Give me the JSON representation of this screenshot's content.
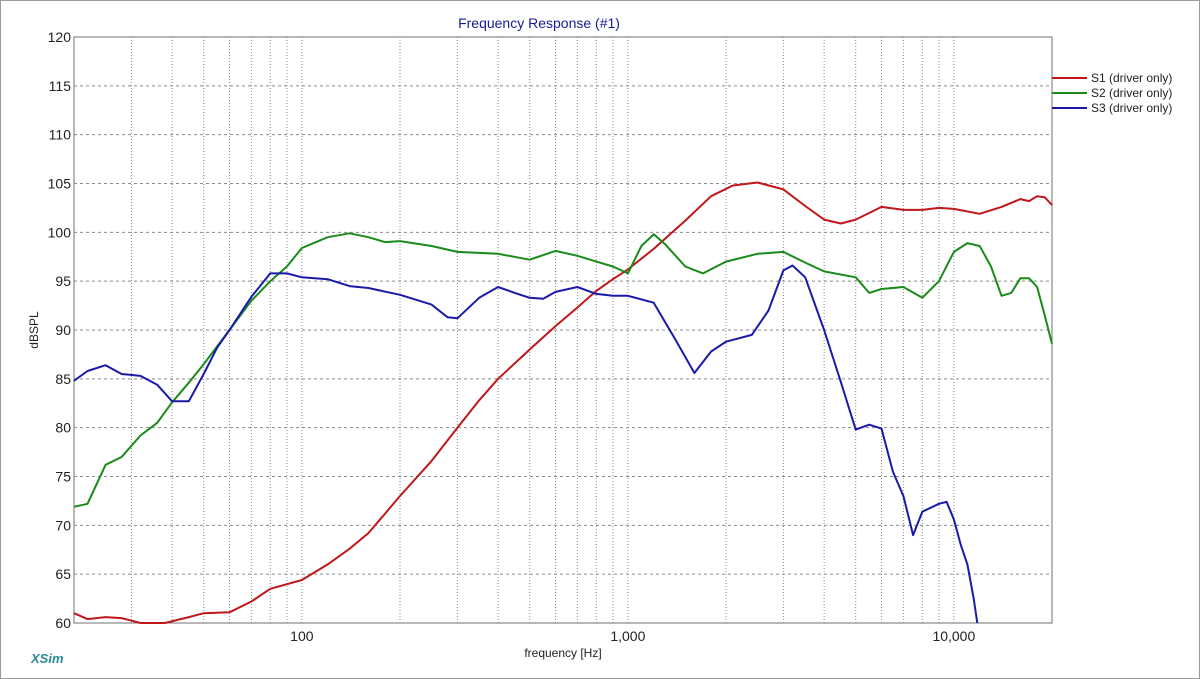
{
  "chart_data": {
    "type": "line",
    "title": "Frequency Response (#1)",
    "xlabel": "frequency [Hz]",
    "ylabel": "dBSPL",
    "xscale": "log",
    "xlim": [
      20,
      20000
    ],
    "ylim": [
      60,
      120
    ],
    "x_tick_labels": [
      {
        "value": 100,
        "label": "100"
      },
      {
        "value": 1000,
        "label": "1,000"
      },
      {
        "value": 10000,
        "label": "10,000"
      }
    ],
    "y_ticks": [
      60,
      65,
      70,
      75,
      80,
      85,
      90,
      95,
      100,
      105,
      110,
      115,
      120
    ],
    "grid": true,
    "legend_position": "top-right",
    "series": [
      {
        "name": "S1 (driver only)",
        "color": "#c0171b",
        "points": [
          [
            20,
            61
          ],
          [
            22,
            60.4
          ],
          [
            25,
            60.6
          ],
          [
            28,
            60.5
          ],
          [
            32,
            60
          ],
          [
            38,
            60
          ],
          [
            45,
            60.6
          ],
          [
            50,
            61
          ],
          [
            60,
            61.1
          ],
          [
            70,
            62.2
          ],
          [
            80,
            63.5
          ],
          [
            100,
            64.4
          ],
          [
            120,
            66
          ],
          [
            140,
            67.6
          ],
          [
            160,
            69.2
          ],
          [
            180,
            71.2
          ],
          [
            200,
            73
          ],
          [
            250,
            76.6
          ],
          [
            300,
            80
          ],
          [
            350,
            82.8
          ],
          [
            400,
            85
          ],
          [
            500,
            88
          ],
          [
            600,
            90.4
          ],
          [
            700,
            92.3
          ],
          [
            800,
            94
          ],
          [
            900,
            95.2
          ],
          [
            1000,
            96.2
          ],
          [
            1200,
            98.3
          ],
          [
            1500,
            101.2
          ],
          [
            1800,
            103.7
          ],
          [
            2100,
            104.8
          ],
          [
            2500,
            105.1
          ],
          [
            3000,
            104.4
          ],
          [
            3500,
            102.7
          ],
          [
            4000,
            101.3
          ],
          [
            4500,
            100.9
          ],
          [
            5000,
            101.3
          ],
          [
            6000,
            102.6
          ],
          [
            7000,
            102.3
          ],
          [
            8000,
            102.3
          ],
          [
            9000,
            102.5
          ],
          [
            10000,
            102.4
          ],
          [
            12000,
            101.9
          ],
          [
            14000,
            102.6
          ],
          [
            16000,
            103.4
          ],
          [
            17000,
            103.2
          ],
          [
            18000,
            103.7
          ],
          [
            19000,
            103.6
          ],
          [
            20000,
            102.8
          ]
        ]
      },
      {
        "name": "S2 (driver only)",
        "color": "#1a8a1a",
        "points": [
          [
            20,
            71.9
          ],
          [
            22,
            72.2
          ],
          [
            25,
            76.2
          ],
          [
            28,
            77
          ],
          [
            32,
            79.2
          ],
          [
            36,
            80.5
          ],
          [
            40,
            82.6
          ],
          [
            45,
            84.6
          ],
          [
            50,
            86.5
          ],
          [
            60,
            90
          ],
          [
            70,
            93
          ],
          [
            80,
            95
          ],
          [
            90,
            96.5
          ],
          [
            100,
            98.4
          ],
          [
            120,
            99.5
          ],
          [
            140,
            99.9
          ],
          [
            160,
            99.5
          ],
          [
            180,
            99
          ],
          [
            200,
            99.1
          ],
          [
            250,
            98.6
          ],
          [
            300,
            98
          ],
          [
            400,
            97.8
          ],
          [
            500,
            97.2
          ],
          [
            600,
            98.1
          ],
          [
            700,
            97.6
          ],
          [
            800,
            97
          ],
          [
            900,
            96.5
          ],
          [
            1000,
            95.8
          ],
          [
            1100,
            98.6
          ],
          [
            1200,
            99.8
          ],
          [
            1300,
            98.8
          ],
          [
            1500,
            96.5
          ],
          [
            1700,
            95.8
          ],
          [
            2000,
            97
          ],
          [
            2500,
            97.8
          ],
          [
            3000,
            98
          ],
          [
            3500,
            96.9
          ],
          [
            4000,
            96
          ],
          [
            5000,
            95.4
          ],
          [
            5500,
            93.8
          ],
          [
            6000,
            94.2
          ],
          [
            7000,
            94.4
          ],
          [
            8000,
            93.3
          ],
          [
            9000,
            95
          ],
          [
            10000,
            98
          ],
          [
            11000,
            98.9
          ],
          [
            12000,
            98.6
          ],
          [
            13000,
            96.5
          ],
          [
            14000,
            93.5
          ],
          [
            15000,
            93.8
          ],
          [
            16000,
            95.3
          ],
          [
            17000,
            95.3
          ],
          [
            18000,
            94.4
          ],
          [
            19000,
            91.5
          ],
          [
            20000,
            88.6
          ]
        ]
      },
      {
        "name": "S3 (driver only)",
        "color": "#1a1aa8",
        "points": [
          [
            20,
            84.8
          ],
          [
            22,
            85.8
          ],
          [
            25,
            86.4
          ],
          [
            28,
            85.5
          ],
          [
            32,
            85.3
          ],
          [
            36,
            84.4
          ],
          [
            40,
            82.7
          ],
          [
            45,
            82.7
          ],
          [
            50,
            85.5
          ],
          [
            55,
            88.2
          ],
          [
            60,
            90
          ],
          [
            70,
            93.4
          ],
          [
            80,
            95.8
          ],
          [
            90,
            95.8
          ],
          [
            100,
            95.4
          ],
          [
            120,
            95.2
          ],
          [
            140,
            94.5
          ],
          [
            160,
            94.3
          ],
          [
            200,
            93.6
          ],
          [
            250,
            92.6
          ],
          [
            280,
            91.3
          ],
          [
            300,
            91.2
          ],
          [
            350,
            93.3
          ],
          [
            400,
            94.4
          ],
          [
            450,
            93.8
          ],
          [
            500,
            93.3
          ],
          [
            550,
            93.2
          ],
          [
            600,
            93.9
          ],
          [
            700,
            94.4
          ],
          [
            800,
            93.7
          ],
          [
            900,
            93.5
          ],
          [
            1000,
            93.5
          ],
          [
            1200,
            92.8
          ],
          [
            1400,
            89
          ],
          [
            1600,
            85.6
          ],
          [
            1800,
            87.8
          ],
          [
            2000,
            88.8
          ],
          [
            2400,
            89.5
          ],
          [
            2700,
            92
          ],
          [
            3000,
            96.1
          ],
          [
            3200,
            96.6
          ],
          [
            3500,
            95.4
          ],
          [
            4000,
            90
          ],
          [
            4500,
            84.7
          ],
          [
            5000,
            79.8
          ],
          [
            5500,
            80.3
          ],
          [
            6000,
            79.9
          ],
          [
            6500,
            75.5
          ],
          [
            7000,
            73
          ],
          [
            7500,
            69
          ],
          [
            8000,
            71.4
          ],
          [
            9000,
            72.2
          ],
          [
            9500,
            72.4
          ],
          [
            10000,
            70.6
          ],
          [
            10500,
            68
          ],
          [
            11000,
            66
          ],
          [
            11500,
            62.5
          ],
          [
            11800,
            60
          ]
        ]
      }
    ]
  },
  "brand": "XSim"
}
